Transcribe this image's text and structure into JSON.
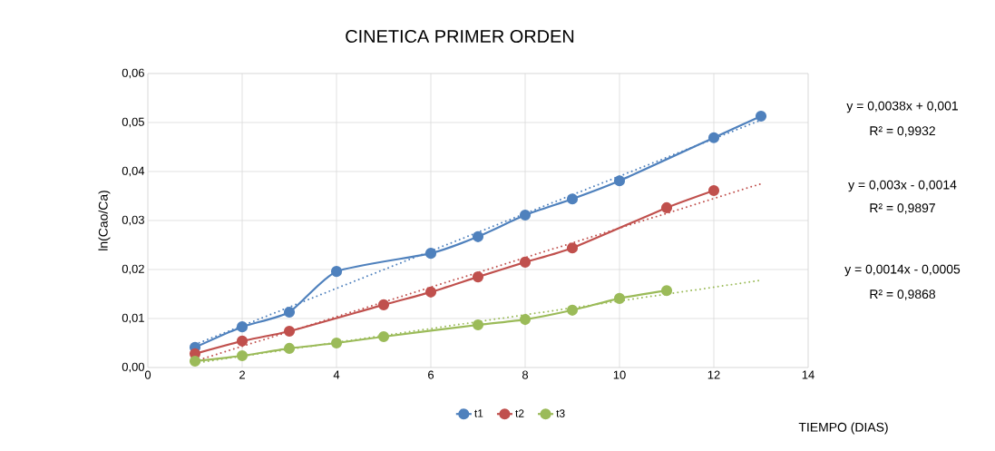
{
  "chart_data": {
    "type": "line",
    "title": "CINETICA PRIMER ORDEN",
    "xlabel": "TIEMPO (DIAS)",
    "ylabel": "ln(Cao/Ca)",
    "xlim": [
      0,
      14
    ],
    "xticks": [
      0,
      2,
      4,
      6,
      8,
      10,
      12,
      14
    ],
    "ylim": [
      0,
      0.06
    ],
    "yticks": [
      {
        "value": 0,
        "label": "0,00"
      },
      {
        "value": 0.01,
        "label": "0,01"
      },
      {
        "value": 0.02,
        "label": "0,02"
      },
      {
        "value": 0.03,
        "label": "0,03"
      },
      {
        "value": 0.04,
        "label": "0,04"
      },
      {
        "value": 0.05,
        "label": "0,05"
      },
      {
        "value": 0.06,
        "label": "0,06"
      }
    ],
    "grid": true,
    "legend": "bottom",
    "marker": "circle",
    "series": [
      {
        "name": "t1",
        "color": "#4f81bd",
        "x": [
          1,
          2,
          3,
          4,
          6,
          7,
          8,
          9,
          10,
          12,
          13
        ],
        "values": [
          0.0041,
          0.0083,
          0.0113,
          0.0196,
          0.0233,
          0.0267,
          0.0311,
          0.0344,
          0.0381,
          0.0469,
          0.0513
        ]
      },
      {
        "name": "t2",
        "color": "#c0504d",
        "x": [
          1,
          2,
          3,
          5,
          6,
          7,
          8,
          9,
          11,
          12
        ],
        "values": [
          0.0028,
          0.0054,
          0.0074,
          0.0128,
          0.0154,
          0.0185,
          0.0215,
          0.0244,
          0.0326,
          0.0361
        ]
      },
      {
        "name": "t3",
        "color": "#9bbb59",
        "x": [
          1,
          2,
          3,
          4,
          5,
          7,
          8,
          9,
          10,
          11
        ],
        "values": [
          0.0013,
          0.0024,
          0.0039,
          0.005,
          0.0063,
          0.0087,
          0.0098,
          0.0117,
          0.0141,
          0.0157
        ]
      },
      {
        "type": "line",
        "color": "#4f81bd",
        "line_style": "dotted",
        "marker": "none",
        "x": [
          1,
          13
        ],
        "values": [
          0.0047,
          0.0505
        ]
      },
      {
        "type": "line",
        "color": "#c0504d",
        "line_style": "dotted",
        "marker": "none",
        "x": [
          1,
          13
        ],
        "values": [
          0.0013,
          0.0375
        ]
      },
      {
        "type": "line",
        "color": "#9bbb59",
        "line_style": "dotted",
        "marker": "none",
        "x": [
          1,
          13
        ],
        "values": [
          0.0009,
          0.0178
        ]
      }
    ],
    "annotations": [
      "y = 0,0038x + 0,001",
      "R² = 0,9932",
      "y = 0,003x - 0,0014",
      "R² = 0,9897",
      "y = 0,0014x - 0,0005",
      "R² = 0,9868"
    ]
  }
}
